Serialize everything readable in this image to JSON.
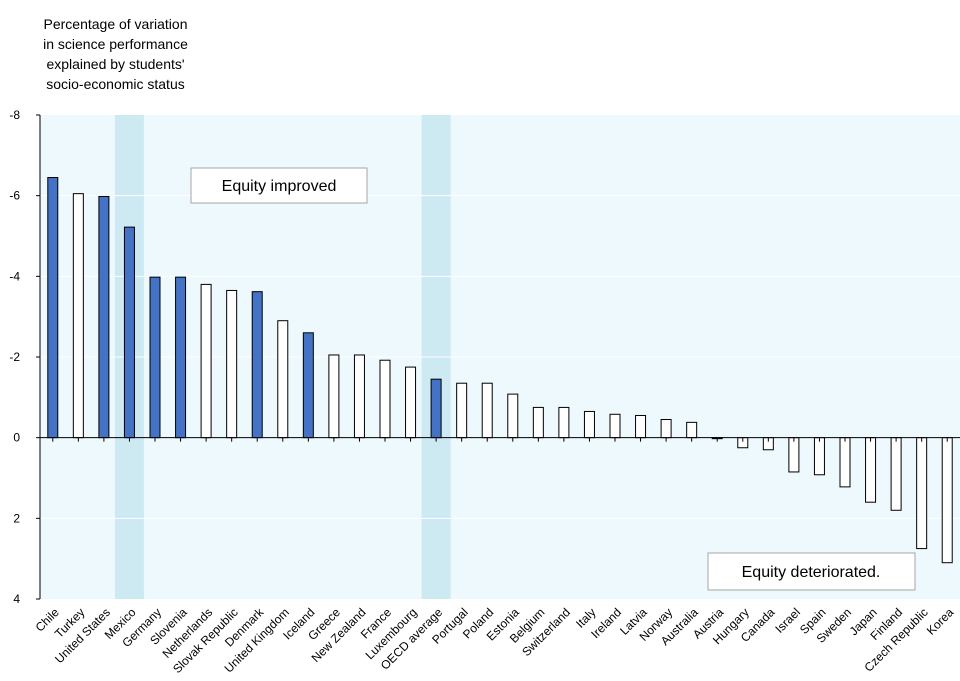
{
  "chart_data": {
    "type": "bar",
    "ylabel_lines": [
      "Percentage of variation",
      "in science performance",
      "explained by students'",
      "socio-economic status"
    ],
    "ylim": [
      -8,
      4
    ],
    "y_inverted": true,
    "y_ticks": [
      -8,
      -6,
      -4,
      -2,
      0,
      2,
      4
    ],
    "y_tick_labels": [
      "-8",
      "-6",
      "-4",
      "-2",
      "0",
      "2",
      "4"
    ],
    "categories": [
      "Chile",
      "Turkey",
      "United States",
      "Mexico",
      "Germany",
      "Slovenia",
      "Netherlands",
      "Slovak Republic",
      "Denmark",
      "United Kingdom",
      "Iceland",
      "Greece",
      "New Zealand",
      "France",
      "Luxembourg",
      "OECD average",
      "Portugal",
      "Poland",
      "Estonia",
      "Belgium",
      "Switzerland",
      "Italy",
      "Ireland",
      "Latvia",
      "Norway",
      "Australia",
      "Austria",
      "Hungary",
      "Canada",
      "Israel",
      "Spain",
      "Sweden",
      "Japan",
      "Finland",
      "Czech Republic",
      "Korea"
    ],
    "values": [
      -6.45,
      -6.05,
      -5.98,
      -5.22,
      -3.98,
      -3.98,
      -3.8,
      -3.65,
      -3.62,
      -2.9,
      -2.6,
      -2.05,
      -2.05,
      -1.92,
      -1.75,
      -1.45,
      -1.35,
      -1.35,
      -1.08,
      -0.75,
      -0.75,
      -0.65,
      -0.58,
      -0.55,
      -0.45,
      -0.38,
      0.02,
      0.25,
      0.3,
      0.85,
      0.92,
      1.22,
      1.6,
      1.8,
      2.75,
      3.1
    ],
    "significant": [
      true,
      false,
      true,
      true,
      true,
      true,
      false,
      false,
      true,
      false,
      true,
      false,
      false,
      false,
      false,
      true,
      false,
      false,
      false,
      false,
      false,
      false,
      false,
      false,
      false,
      false,
      false,
      false,
      false,
      false,
      false,
      false,
      false,
      false,
      false,
      false
    ],
    "highlighted_categories": [
      "Mexico",
      "OECD average"
    ],
    "colors": {
      "significant_fill": "#4472c4",
      "nonsignificant_fill": "#ffffff",
      "bar_stroke": "#000000",
      "plot_background": "#eef9fd",
      "highlight_band": "#cdeaf3",
      "gridline": "#ffffff"
    },
    "grid": true,
    "annotations": [
      "Equity improved",
      "Equity deteriorated."
    ]
  }
}
